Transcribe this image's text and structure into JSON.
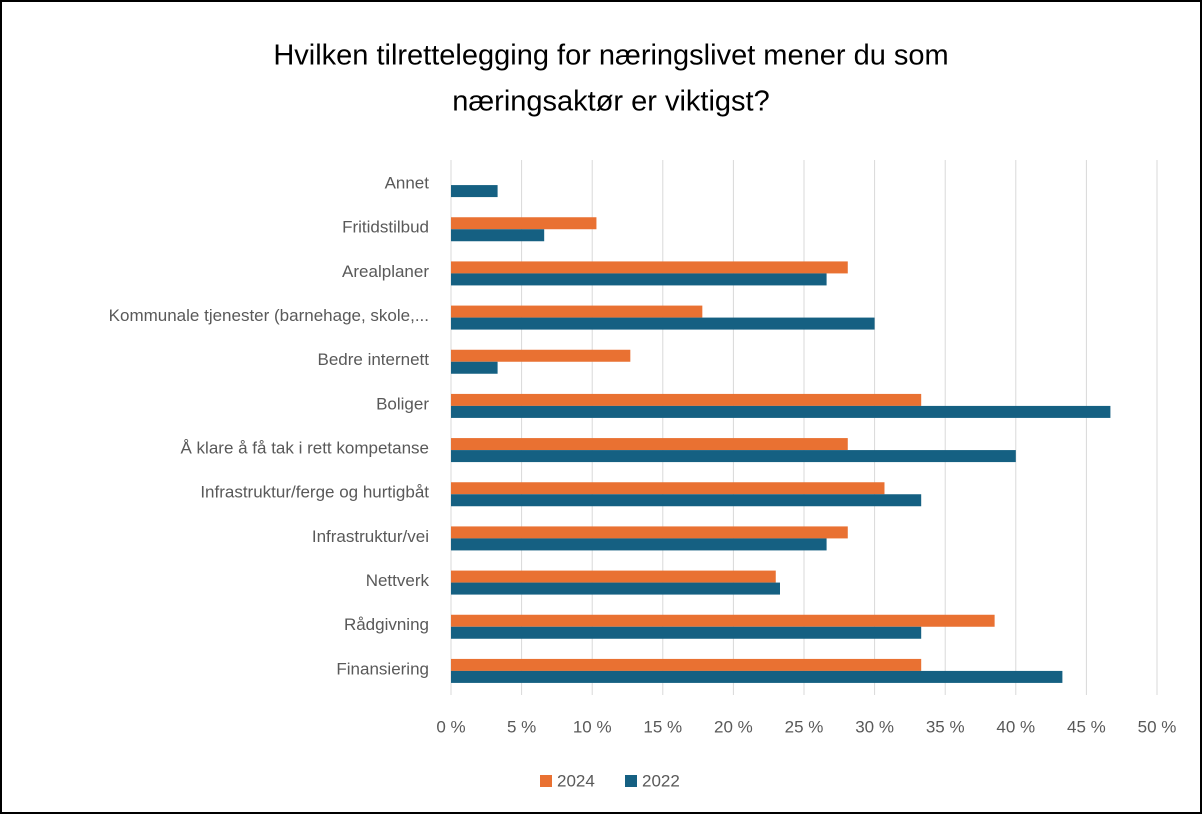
{
  "chart_data": {
    "type": "bar",
    "orientation": "horizontal",
    "title": [
      "Hvilken tilrettelegging for næringslivet mener du som",
      "næringsaktør er viktigst?"
    ],
    "categories": [
      "Annet",
      "Fritidstilbud",
      "Arealplaner",
      "Kommunale tjenester (barnehage, skole,...",
      "Bedre internett",
      "Boliger",
      "Å klare å få tak i rett kompetanse",
      "Infrastruktur/ferge og hurtigbåt",
      "Infrastruktur/vei",
      "Nettverk",
      "Rådgivning",
      "Finansiering"
    ],
    "series": [
      {
        "name": "2024",
        "color": "#e97132",
        "values": [
          0,
          10.3,
          28.1,
          17.8,
          12.7,
          33.3,
          28.1,
          30.7,
          28.1,
          23.0,
          38.5,
          33.3
        ]
      },
      {
        "name": "2022",
        "color": "#156082",
        "values": [
          3.3,
          6.6,
          26.6,
          30.0,
          3.3,
          46.7,
          40.0,
          33.3,
          26.6,
          23.3,
          33.3,
          43.3
        ]
      }
    ],
    "xlim": [
      0,
      50
    ],
    "xticks": [
      {
        "value": 0,
        "label": "0 %"
      },
      {
        "value": 5,
        "label": "5 %"
      },
      {
        "value": 10,
        "label": "10 %"
      },
      {
        "value": 15,
        "label": "15 %"
      },
      {
        "value": 20,
        "label": "20 %"
      },
      {
        "value": 25,
        "label": "25 %"
      },
      {
        "value": 30,
        "label": "30 %"
      },
      {
        "value": 35,
        "label": "35 %"
      },
      {
        "value": 40,
        "label": "40 %"
      },
      {
        "value": 45,
        "label": "45 %"
      },
      {
        "value": 50,
        "label": "50 %"
      }
    ],
    "grid": true,
    "legend": "bottom"
  }
}
